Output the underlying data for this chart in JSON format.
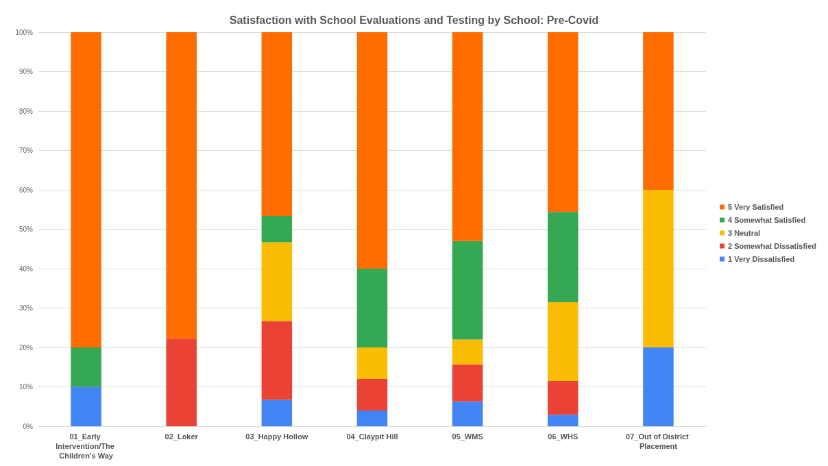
{
  "chart_data": {
    "type": "bar",
    "title": "Satisfaction with School Evaluations and Testing by School: Pre-Covid",
    "categories": [
      "01_Early Intervention/The Children's Way",
      "02_Loker",
      "03_Happy Hollow",
      "04_Claypit Hill",
      "05_WMS",
      "06_WHS",
      "07_Out of District Placement"
    ],
    "stacked": true,
    "series": [
      {
        "name": "1 Very Dissatisfied",
        "color": "#4285f4",
        "values": [
          10,
          0,
          6.7,
          4,
          6.3,
          2.9,
          20
        ]
      },
      {
        "name": "2 Somewhat Dissatisfied",
        "color": "#ea4335",
        "values": [
          0,
          22.2,
          20,
          8,
          9.4,
          8.6,
          0
        ]
      },
      {
        "name": "3 Neutral",
        "color": "#fbbc04",
        "values": [
          0,
          0,
          20,
          8,
          6.3,
          20,
          40
        ]
      },
      {
        "name": "4 Somewhat Satisfied",
        "color": "#34a853",
        "values": [
          10,
          0,
          6.7,
          20,
          25,
          22.9,
          0
        ]
      },
      {
        "name": "5 Very Satisfied",
        "color": "#ff6d01",
        "values": [
          80,
          77.8,
          46.7,
          60,
          53.1,
          45.7,
          40
        ]
      }
    ],
    "ylim": [
      0,
      100
    ],
    "yticks": [
      {
        "value": 0,
        "label": "0%"
      },
      {
        "value": 10,
        "label": "10%"
      },
      {
        "value": 20,
        "label": "20%"
      },
      {
        "value": 30,
        "label": "30%"
      },
      {
        "value": 40,
        "label": "40%"
      },
      {
        "value": 50,
        "label": "50%"
      },
      {
        "value": 60,
        "label": "60%"
      },
      {
        "value": 70,
        "label": "70%"
      },
      {
        "value": 80,
        "label": "80%"
      },
      {
        "value": 90,
        "label": "90%"
      },
      {
        "value": 100,
        "label": "100%"
      }
    ],
    "grid": "y",
    "legend": "right"
  }
}
